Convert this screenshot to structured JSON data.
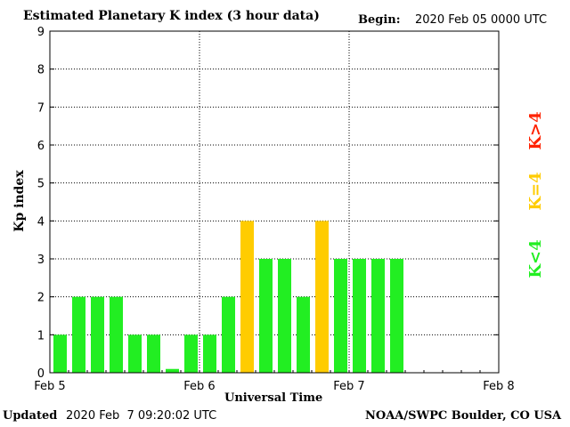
{
  "header": {
    "title": "Estimated Planetary K index (3 hour data)",
    "begin_label": "Begin:",
    "begin_value": "2020 Feb 05 0000 UTC"
  },
  "footer": {
    "updated_label": "Updated",
    "updated_value": "2020 Feb  7 09:20:02 UTC",
    "credit": "NOAA/SWPC Boulder, CO USA"
  },
  "legend": {
    "high": "K>4",
    "equal": "K=4",
    "low": "K<4"
  },
  "colors": {
    "low": "#22ee22",
    "equal": "#ffcc00",
    "high": "#ff2200"
  },
  "chart_data": {
    "type": "bar",
    "title": "Estimated Planetary K index (3 hour data)",
    "xlabel": "Universal Time",
    "ylabel": "Kp index",
    "ylim": [
      0,
      9
    ],
    "yticks": [
      "0",
      "1",
      "2",
      "3",
      "4",
      "5",
      "6",
      "7",
      "8",
      "9"
    ],
    "xticks": [
      "Feb 5",
      "Feb 6",
      "Feb 7",
      "Feb 8"
    ],
    "grid": true,
    "bar_interval_hours": 3,
    "values": [
      1,
      2,
      2,
      2,
      1,
      1,
      0.1,
      1,
      1,
      2,
      4,
      3,
      3,
      2,
      4,
      3,
      3,
      3,
      3
    ]
  }
}
